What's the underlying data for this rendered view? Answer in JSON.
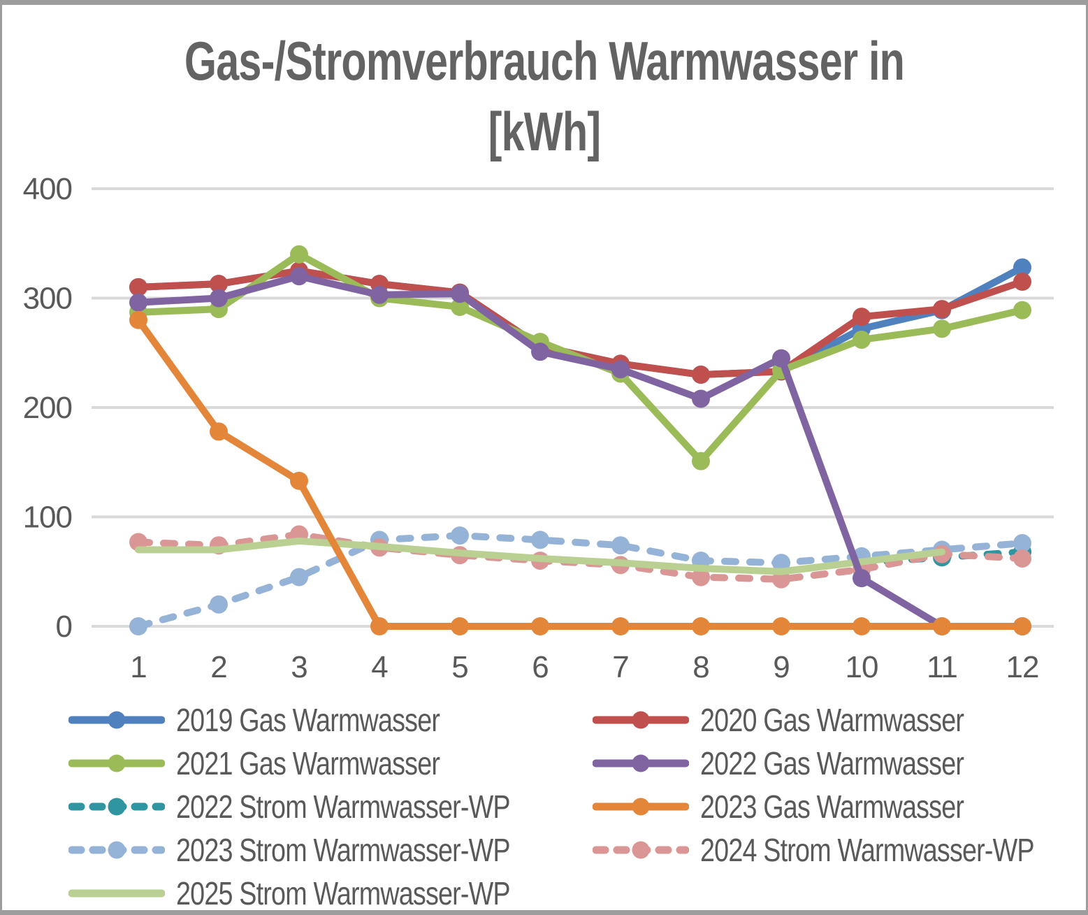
{
  "chart_data": {
    "type": "line",
    "title": "Gas-/Stromverbrauch Warmwasser in [kWh]",
    "xlabel": "",
    "ylabel": "",
    "x": [
      1,
      2,
      3,
      4,
      5,
      6,
      7,
      8,
      9,
      10,
      11,
      12
    ],
    "yticks": [
      0,
      100,
      200,
      300,
      400
    ],
    "ylim": [
      0,
      400
    ],
    "grid": true,
    "grid_color": "#d9d9d9",
    "axis_text_color": "#595959",
    "title_color": "#636363",
    "legend_position": "bottom",
    "legend_columns": 2,
    "series": [
      {
        "id": "gas-2019",
        "name": "2019 Gas Warmwasser",
        "color": "#4e81bd",
        "style": "solid",
        "marker": true,
        "z": 4,
        "values": [
          310,
          313,
          325,
          313,
          305,
          256,
          240,
          230,
          233,
          272,
          289,
          328
        ]
      },
      {
        "id": "gas-2020",
        "name": "2020 Gas Warmwasser",
        "color": "#c0504d",
        "style": "solid",
        "marker": true,
        "z": 5,
        "values": [
          310,
          313,
          325,
          313,
          305,
          256,
          240,
          230,
          233,
          283,
          290,
          315
        ]
      },
      {
        "id": "gas-2021",
        "name": "2021 Gas Warmwasser",
        "color": "#9bbb59",
        "style": "solid",
        "marker": true,
        "z": 6,
        "values": [
          287,
          290,
          340,
          300,
          292,
          260,
          231,
          151,
          234,
          262,
          272,
          289
        ]
      },
      {
        "id": "gas-2022",
        "name": "2022 Gas Warmwasser",
        "color": "#8064a2",
        "style": "solid",
        "marker": true,
        "z": 7,
        "values": [
          296,
          300,
          320,
          303,
          304,
          251,
          235,
          208,
          245,
          44,
          0,
          0
        ]
      },
      {
        "id": "strom-2022",
        "name": "2022 Strom Warmwasser-WP",
        "color": "#2f95a0",
        "style": "dashed",
        "marker": true,
        "z": 0,
        "values": [
          null,
          null,
          null,
          null,
          null,
          null,
          null,
          null,
          null,
          58,
          63,
          68
        ]
      },
      {
        "id": "gas-2023",
        "name": "2023 Gas Warmwasser",
        "color": "#e3863a",
        "style": "solid",
        "marker": true,
        "z": 8,
        "values": [
          280,
          178,
          133,
          0,
          0,
          0,
          0,
          0,
          0,
          0,
          0,
          0
        ]
      },
      {
        "id": "strom-2023",
        "name": "2023 Strom Warmwasser-WP",
        "color": "#95b3d7",
        "style": "dashed",
        "marker": true,
        "z": 1,
        "values": [
          0,
          20,
          45,
          79,
          83,
          79,
          74,
          60,
          58,
          64,
          70,
          76
        ]
      },
      {
        "id": "strom-2024",
        "name": "2024 Strom Warmwasser-WP",
        "color": "#d99694",
        "style": "dashed",
        "marker": true,
        "z": 2,
        "values": [
          77,
          74,
          84,
          72,
          65,
          60,
          56,
          45,
          43,
          52,
          66,
          62
        ]
      },
      {
        "id": "strom-2025",
        "name": "2025 Strom Warmwasser-WP",
        "color": "#b9d092",
        "style": "solid",
        "marker": false,
        "z": 3,
        "values": [
          70,
          70,
          78,
          73,
          67,
          62,
          58,
          53,
          50,
          59,
          68,
          null
        ]
      }
    ]
  }
}
